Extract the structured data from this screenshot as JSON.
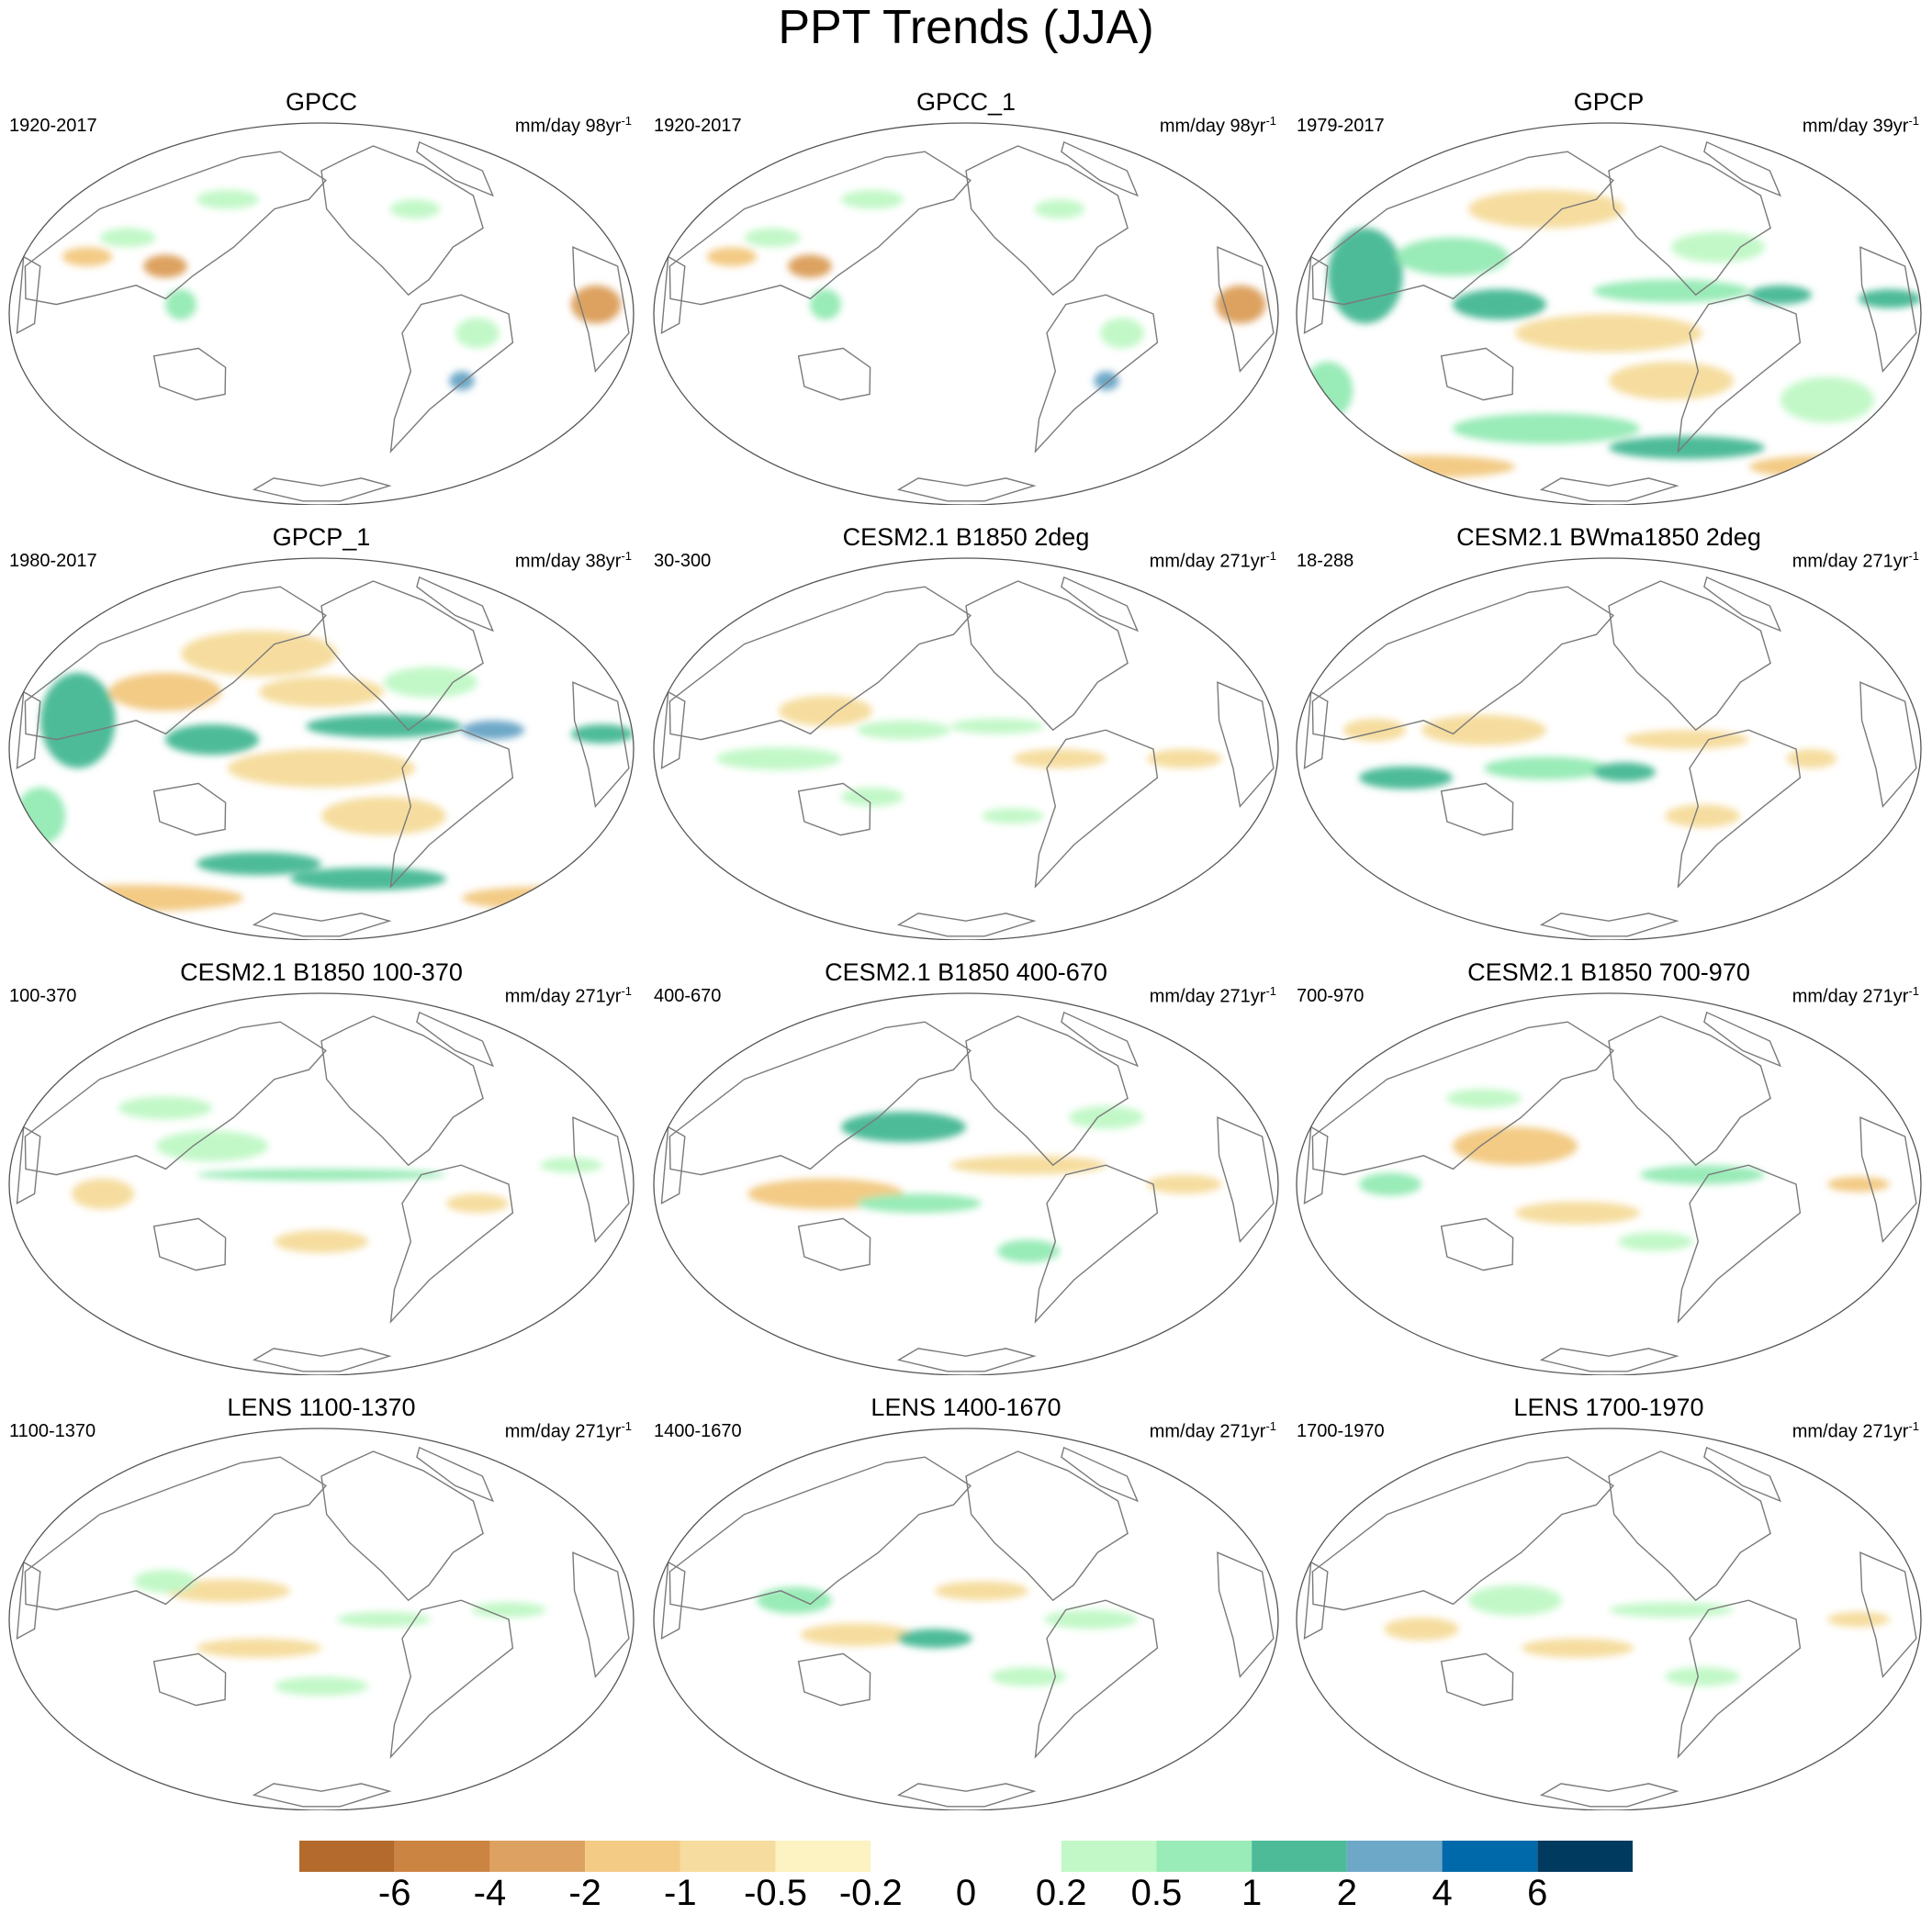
{
  "figure": {
    "title": "PPT Trends (JJA)"
  },
  "colors": {
    "strong_dry": "#b36a2c",
    "dry4": "#cc8442",
    "dry3": "#dda261",
    "dry2": "#f3cb85",
    "dry1": "#f6dd9f",
    "dry0": "#fdf2c2",
    "neutral": "#ffffff",
    "wet0": "#c2f8c8",
    "wet1": "#99ebb7",
    "wet2": "#4dbb98",
    "wet3": "#6ea8c8",
    "wet4": "#0069aa",
    "wet5": "#003a5e",
    "coast": "#7a7a7a"
  },
  "panels": [
    {
      "title": "GPCC",
      "period": "1920-2017",
      "units": "mm/day 98yr",
      "units_exp": "-1"
    },
    {
      "title": "GPCC_1",
      "period": "1920-2017",
      "units": "mm/day 98yr",
      "units_exp": "-1"
    },
    {
      "title": "GPCP",
      "period": "1979-2017",
      "units": "mm/day 39yr",
      "units_exp": "-1"
    },
    {
      "title": "GPCP_1",
      "period": "1980-2017",
      "units": "mm/day 38yr",
      "units_exp": "-1"
    },
    {
      "title": "CESM2.1 B1850 2deg",
      "period": "30-300",
      "units": "mm/day 271yr",
      "units_exp": "-1"
    },
    {
      "title": "CESM2.1 BWma1850 2deg",
      "period": "18-288",
      "units": "mm/day 271yr",
      "units_exp": "-1"
    },
    {
      "title": "CESM2.1 B1850 100-370",
      "period": "100-370",
      "units": "mm/day 271yr",
      "units_exp": "-1"
    },
    {
      "title": "CESM2.1 B1850 400-670",
      "period": "400-670",
      "units": "mm/day 271yr",
      "units_exp": "-1"
    },
    {
      "title": "CESM2.1 B1850 700-970",
      "period": "700-970",
      "units": "mm/day 271yr",
      "units_exp": "-1"
    },
    {
      "title": "LENS 1100-1370",
      "period": "1100-1370",
      "units": "mm/day 271yr",
      "units_exp": "-1"
    },
    {
      "title": "LENS 1400-1670",
      "period": "1400-1670",
      "units": "mm/day 271yr",
      "units_exp": "-1"
    },
    {
      "title": "LENS 1700-1970",
      "period": "1700-1970",
      "units": "mm/day 271yr",
      "units_exp": "-1"
    }
  ],
  "colorbar": {
    "labels": [
      "-6",
      "-4",
      "-2",
      "-1",
      "-0.5",
      "-0.2",
      "0",
      "0.2",
      "0.5",
      "1",
      "2",
      "4",
      "6"
    ],
    "colors": [
      "#b36a2c",
      "#cc8442",
      "#dda261",
      "#f3cb85",
      "#f6dd9f",
      "#fdf2c2",
      "#ffffff",
      "#ffffff",
      "#c2f8c8",
      "#99ebb7",
      "#4dbb98",
      "#6ea8c8",
      "#0069aa",
      "#003a5e"
    ]
  }
}
